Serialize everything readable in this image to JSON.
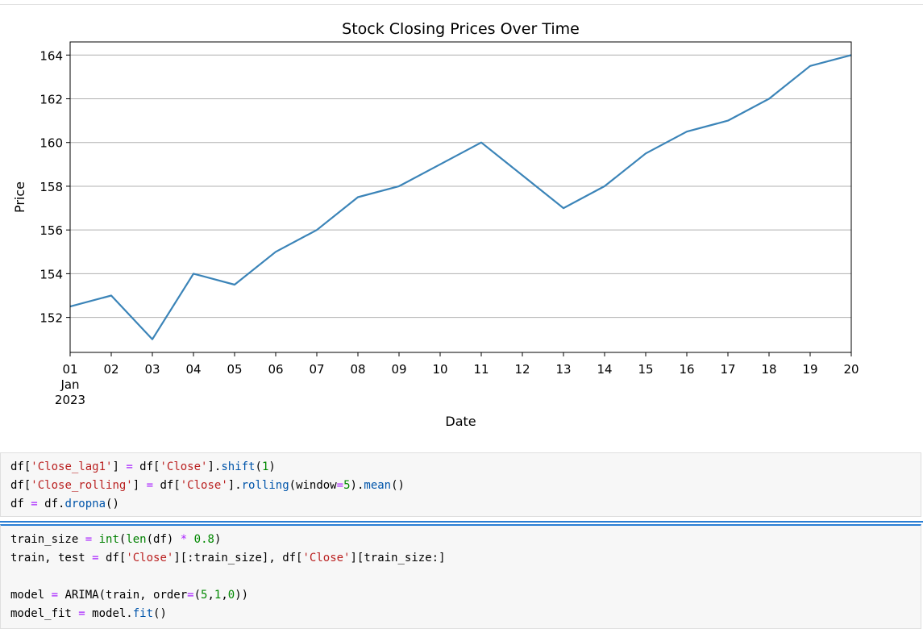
{
  "chart_data": {
    "type": "line",
    "title": "Stock Closing Prices Over Time",
    "xlabel": "Date",
    "ylabel": "Price",
    "x": [
      "2023-01-01",
      "2023-01-02",
      "2023-01-03",
      "2023-01-04",
      "2023-01-05",
      "2023-01-06",
      "2023-01-07",
      "2023-01-08",
      "2023-01-09",
      "2023-01-10",
      "2023-01-11",
      "2023-01-12",
      "2023-01-13",
      "2023-01-14",
      "2023-01-15",
      "2023-01-16",
      "2023-01-17",
      "2023-01-18",
      "2023-01-19",
      "2023-01-20"
    ],
    "x_tick_labels": [
      "01",
      "02",
      "03",
      "04",
      "05",
      "06",
      "07",
      "08",
      "09",
      "10",
      "11",
      "12",
      "13",
      "14",
      "15",
      "16",
      "17",
      "18",
      "19",
      "20"
    ],
    "x_tick_sublabels": [
      "Jan",
      "2023"
    ],
    "values": [
      152.5,
      153.0,
      151.0,
      154.0,
      153.5,
      155.0,
      156.0,
      157.5,
      158.0,
      159.0,
      160.0,
      158.5,
      157.0,
      158.0,
      159.5,
      160.5,
      161.0,
      162.0,
      163.5,
      164.0
    ],
    "y_ticks": [
      152,
      154,
      156,
      158,
      160,
      162,
      164
    ],
    "ylim": [
      150.4,
      164.6
    ],
    "grid": "horizontal",
    "line_color": "#3b84b8"
  },
  "code_cells": [
    {
      "lines": [
        [
          [
            "df[",
            ""
          ],
          [
            "'Close_lag1'",
            "str"
          ],
          [
            "] ",
            ""
          ],
          [
            "=",
            "op"
          ],
          [
            " df[",
            ""
          ],
          [
            "'Close'",
            "str"
          ],
          [
            "].",
            ""
          ],
          [
            "shift",
            "fn"
          ],
          [
            "(",
            ""
          ],
          [
            "1",
            "num"
          ],
          [
            ")",
            ""
          ]
        ],
        [
          [
            "df[",
            ""
          ],
          [
            "'Close_rolling'",
            "str"
          ],
          [
            "] ",
            ""
          ],
          [
            "=",
            "op"
          ],
          [
            " df[",
            ""
          ],
          [
            "'Close'",
            "str"
          ],
          [
            "].",
            ""
          ],
          [
            "rolling",
            "fn"
          ],
          [
            "(window",
            ""
          ],
          [
            "=",
            "op"
          ],
          [
            "5",
            "num"
          ],
          [
            ").",
            ""
          ],
          [
            "mean",
            "fn"
          ],
          [
            "()",
            ""
          ]
        ],
        [
          [
            "df ",
            ""
          ],
          [
            "=",
            "op"
          ],
          [
            " df.",
            ""
          ],
          [
            "dropna",
            "fn"
          ],
          [
            "()",
            ""
          ]
        ]
      ]
    },
    {
      "lines": [
        [
          [
            "train_size ",
            ""
          ],
          [
            "=",
            "op"
          ],
          [
            " ",
            ""
          ],
          [
            "int",
            "bi"
          ],
          [
            "(",
            ""
          ],
          [
            "len",
            "bi"
          ],
          [
            "(df) ",
            ""
          ],
          [
            "*",
            "op"
          ],
          [
            " ",
            ""
          ],
          [
            "0.8",
            "num"
          ],
          [
            ")",
            ""
          ]
        ],
        [
          [
            "train, test ",
            ""
          ],
          [
            "=",
            "op"
          ],
          [
            " df[",
            ""
          ],
          [
            "'Close'",
            "str"
          ],
          [
            "][:train_size], df[",
            ""
          ],
          [
            "'Close'",
            "str"
          ],
          [
            "][train_size:]",
            ""
          ]
        ],
        [
          [
            "",
            ""
          ]
        ],
        [
          [
            "model ",
            ""
          ],
          [
            "=",
            "op"
          ],
          [
            " ARIMA(train, order",
            ""
          ],
          [
            "=",
            "op"
          ],
          [
            "(",
            ""
          ],
          [
            "5",
            "num"
          ],
          [
            ",",
            ""
          ],
          [
            "1",
            "num"
          ],
          [
            ",",
            ""
          ],
          [
            "0",
            "num"
          ],
          [
            "))",
            ""
          ]
        ],
        [
          [
            "model_fit ",
            ""
          ],
          [
            "=",
            "op"
          ],
          [
            " model.",
            ""
          ],
          [
            "fit",
            "fn"
          ],
          [
            "()",
            ""
          ]
        ]
      ]
    }
  ]
}
